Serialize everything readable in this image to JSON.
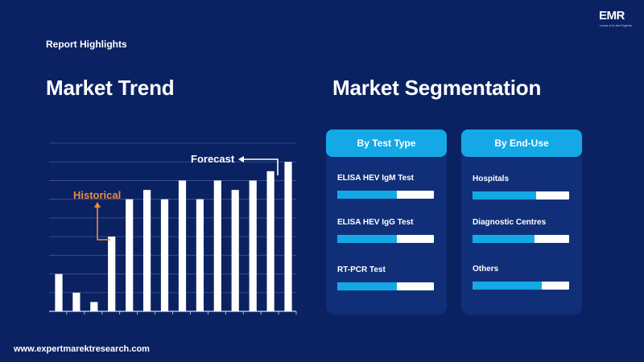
{
  "header": {
    "report_highlights": "Report Highlights",
    "market_trend": "Market Trend",
    "market_segmentation": "Market Segmentation",
    "website": "www.expertmarektresearch.com"
  },
  "logo": {
    "name": "EMR",
    "tagline": "Leave it to the Experts"
  },
  "chart_data": {
    "type": "bar",
    "values": [
      20,
      10,
      5,
      40,
      60,
      65,
      60,
      70,
      60,
      70,
      65,
      70,
      75,
      80
    ],
    "ylim": [
      0,
      90
    ],
    "grid": true,
    "annotations": [
      {
        "text": "Historical",
        "color": "#f0893b",
        "points_to_index": 3
      },
      {
        "text": "Forecast",
        "color": "#ffffff",
        "points_from_index": 13
      }
    ]
  },
  "segments": {
    "test_type": {
      "title": "By Test Type",
      "items": [
        {
          "label": "ELISA HEV IgM Test",
          "level": 0.62
        },
        {
          "label": "ELISA HEV IgG Test",
          "level": 0.62
        },
        {
          "label": "RT-PCR Test",
          "level": 0.62
        }
      ]
    },
    "end_use": {
      "title": "By End-Use",
      "items": [
        {
          "label": "Hospitals",
          "level": 0.66
        },
        {
          "label": "Diagnostic Centres",
          "level": 0.64
        },
        {
          "label": "Others",
          "level": 0.72
        }
      ]
    }
  },
  "colors": {
    "background": "#0b2262",
    "panel": "#112f79",
    "accent": "#14a9e6",
    "historical": "#f0893b"
  }
}
